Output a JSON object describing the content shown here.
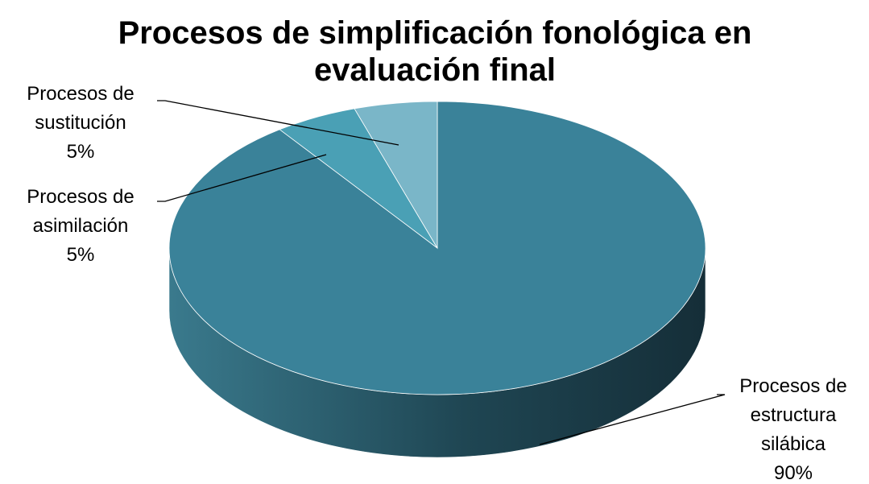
{
  "chart_data": {
    "type": "pie",
    "title": "Procesos de simplificación fonológica en evaluación final",
    "categories": [
      "Procesos de estructura silábica",
      "Procesos de asimilación",
      "Procesos de sustitución"
    ],
    "values": [
      90,
      5,
      5
    ],
    "value_labels": [
      "90%",
      "5%",
      "5%"
    ],
    "colors": [
      "#3a8299",
      "#4aa0b5",
      "#7ab6c8"
    ]
  }
}
